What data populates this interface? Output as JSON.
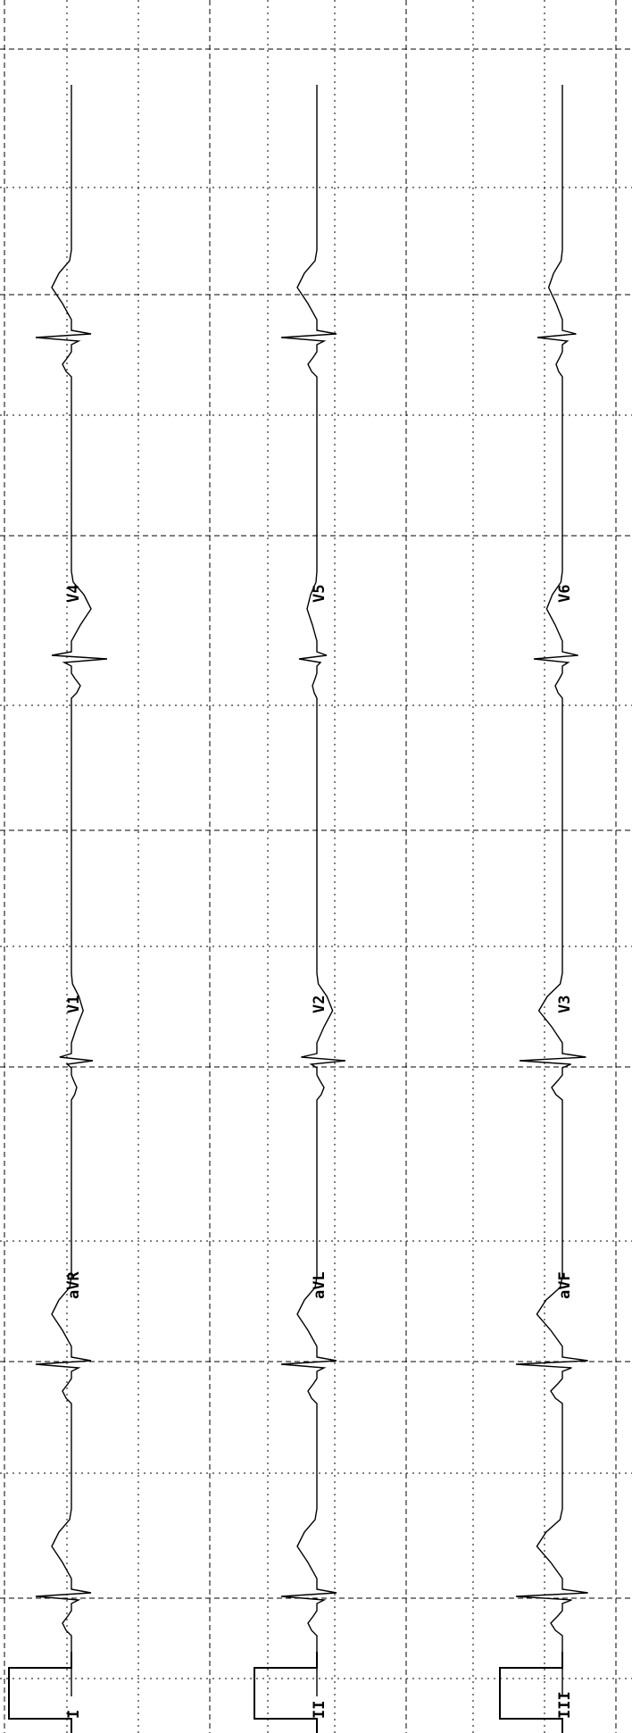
{
  "colors": {
    "background": "#ffffff",
    "grid": "#000000",
    "trace": "#000000"
  },
  "orientation": "rotated 90° clockwise (time runs top-to-bottom)",
  "grid": "dotted",
  "rows": [
    {
      "leads": [
        {
          "id": "I",
          "label": "I"
        },
        {
          "id": "aVR",
          "label": "aVR"
        },
        {
          "id": "V1",
          "label": "V1"
        },
        {
          "id": "V4",
          "label": "V4"
        }
      ]
    },
    {
      "leads": [
        {
          "id": "II",
          "label": "II"
        },
        {
          "id": "aVL",
          "label": "aVL"
        },
        {
          "id": "V2",
          "label": "V2"
        },
        {
          "id": "V5",
          "label": "V5"
        }
      ]
    },
    {
      "leads": [
        {
          "id": "III",
          "label": "III"
        },
        {
          "id": "aVF",
          "label": "aVF"
        },
        {
          "id": "V3",
          "label": "V3"
        },
        {
          "id": "V6",
          "label": "V6"
        }
      ]
    }
  ]
}
